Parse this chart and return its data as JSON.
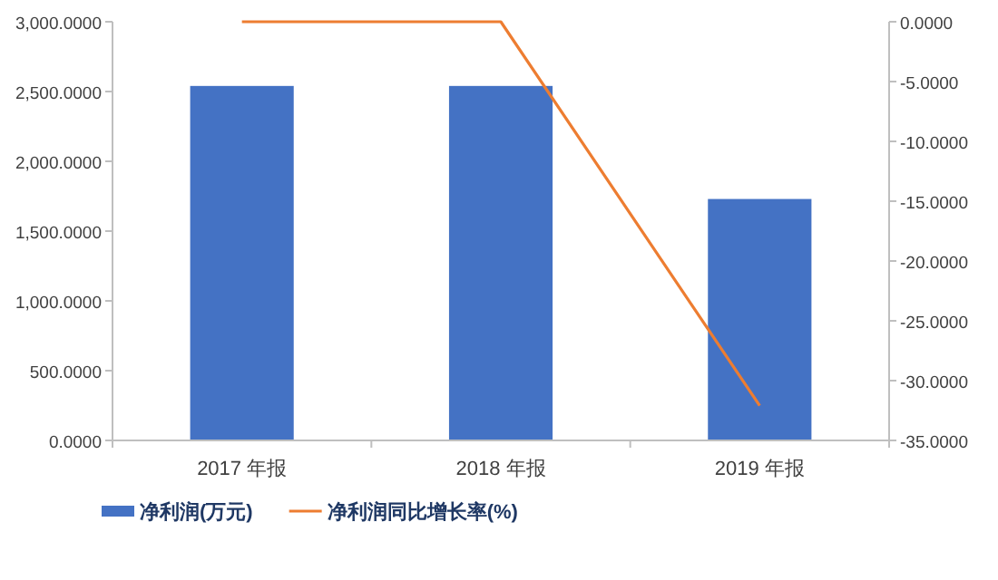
{
  "chart_data": {
    "type": "bar",
    "categories": [
      "2017 年报",
      "2018 年报",
      "2019 年报"
    ],
    "series": [
      {
        "name": "净利润(万元)",
        "color": "#4472c4",
        "values": [
          2540,
          2540,
          1730
        ]
      },
      {
        "name": "净利润同比增长率(%)",
        "type": "line",
        "axis": "y2",
        "color": "#ed7d31",
        "values": [
          0,
          0,
          -32.1
        ]
      }
    ],
    "ylim": [
      0,
      3000
    ],
    "yticks": [
      {
        "value": 0,
        "label": "0.0000"
      },
      {
        "value": 500,
        "label": "500.0000"
      },
      {
        "value": 1000,
        "label": "1,000.0000"
      },
      {
        "value": 1500,
        "label": "1,500.0000"
      },
      {
        "value": 2000,
        "label": "2,000.0000"
      },
      {
        "value": 2500,
        "label": "2,500.0000"
      },
      {
        "value": 3000,
        "label": "3,000.0000"
      }
    ],
    "y2lim": [
      -35,
      0
    ],
    "y2ticks": [
      {
        "value": -35,
        "label": "-35.0000"
      },
      {
        "value": -30,
        "label": "-30.0000"
      },
      {
        "value": -25,
        "label": "-25.0000"
      },
      {
        "value": -20,
        "label": "-20.0000"
      },
      {
        "value": -15,
        "label": "-15.0000"
      },
      {
        "value": -10,
        "label": "-10.0000"
      },
      {
        "value": -5,
        "label": "-5.0000"
      },
      {
        "value": 0,
        "label": "0.0000"
      }
    ],
    "legend": "bottom",
    "grid": false,
    "marker": "none"
  }
}
